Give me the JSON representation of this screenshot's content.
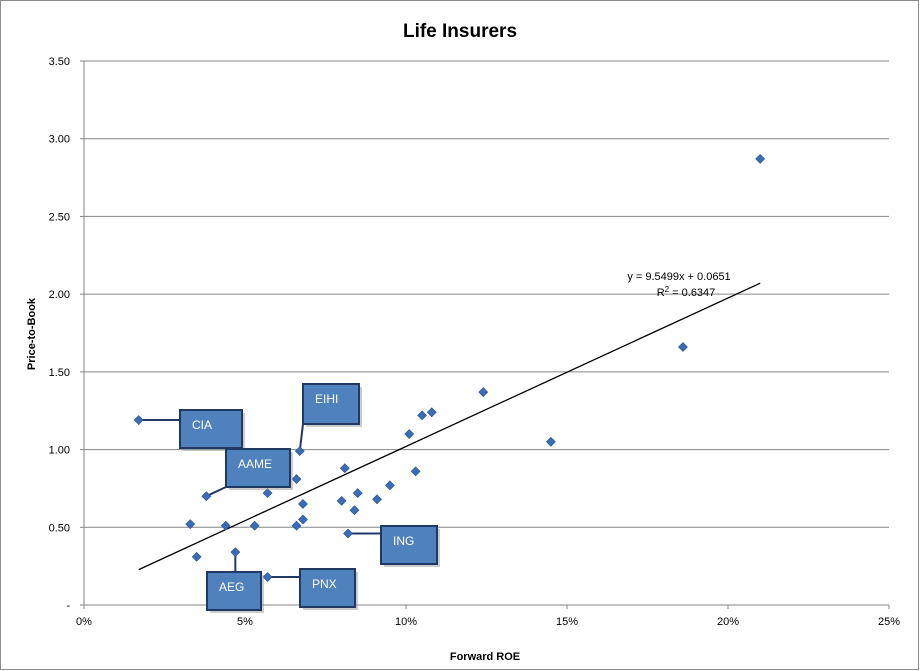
{
  "chart_data": {
    "type": "scatter",
    "title": "Life Insurers",
    "xlabel": "Forward ROE",
    "ylabel": "Price-to-Book",
    "xlim": [
      0,
      0.25
    ],
    "ylim": [
      0,
      3.5
    ],
    "x_ticks": [
      0,
      0.05,
      0.1,
      0.15,
      0.2,
      0.25
    ],
    "x_tick_labels": [
      "0%",
      "5%",
      "10%",
      "15%",
      "20%",
      "25%"
    ],
    "y_ticks": [
      0,
      0.5,
      1.0,
      1.5,
      2.0,
      2.5,
      3.0,
      3.5
    ],
    "y_tick_labels": [
      "-",
      "0.50",
      "1.00",
      "1.50",
      "2.00",
      "2.50",
      "3.00",
      "3.50"
    ],
    "grid": "horizontal",
    "marker_color": "#3A6DB5",
    "points": [
      {
        "x": 0.017,
        "y": 1.19
      },
      {
        "x": 0.033,
        "y": 0.52
      },
      {
        "x": 0.035,
        "y": 0.31
      },
      {
        "x": 0.038,
        "y": 0.7
      },
      {
        "x": 0.044,
        "y": 0.51
      },
      {
        "x": 0.047,
        "y": 0.34
      },
      {
        "x": 0.053,
        "y": 0.51
      },
      {
        "x": 0.057,
        "y": 0.72
      },
      {
        "x": 0.057,
        "y": 0.18
      },
      {
        "x": 0.066,
        "y": 0.51
      },
      {
        "x": 0.066,
        "y": 0.81
      },
      {
        "x": 0.067,
        "y": 0.99
      },
      {
        "x": 0.068,
        "y": 0.65
      },
      {
        "x": 0.068,
        "y": 0.55
      },
      {
        "x": 0.08,
        "y": 0.67
      },
      {
        "x": 0.081,
        "y": 0.88
      },
      {
        "x": 0.082,
        "y": 0.46
      },
      {
        "x": 0.084,
        "y": 0.61
      },
      {
        "x": 0.085,
        "y": 0.72
      },
      {
        "x": 0.091,
        "y": 0.68
      },
      {
        "x": 0.095,
        "y": 0.77
      },
      {
        "x": 0.101,
        "y": 1.1
      },
      {
        "x": 0.103,
        "y": 0.86
      },
      {
        "x": 0.105,
        "y": 1.22
      },
      {
        "x": 0.108,
        "y": 1.24
      },
      {
        "x": 0.124,
        "y": 1.37
      },
      {
        "x": 0.145,
        "y": 1.05
      },
      {
        "x": 0.186,
        "y": 1.66
      },
      {
        "x": 0.21,
        "y": 2.87
      }
    ],
    "trendline": {
      "slope": 9.5499,
      "intercept": 0.0651,
      "x_range": [
        0.017,
        0.21
      ],
      "equation": "y = 9.5499x + 0.0651",
      "r2_prefix": "R",
      "r2_exponent": "2",
      "r2_suffix": " = 0.6347"
    },
    "callout_color": "#4F81BD",
    "callout_border": "#1F3864",
    "callouts": [
      {
        "label": "CIA",
        "point_index": 0
      },
      {
        "label": "EIHI",
        "point_index": 11
      },
      {
        "label": "AAME",
        "point_index": 3
      },
      {
        "label": "ING",
        "point_index": 16
      },
      {
        "label": "AEG",
        "point_index": 5
      },
      {
        "label": "PNX",
        "point_index": 8
      }
    ]
  }
}
